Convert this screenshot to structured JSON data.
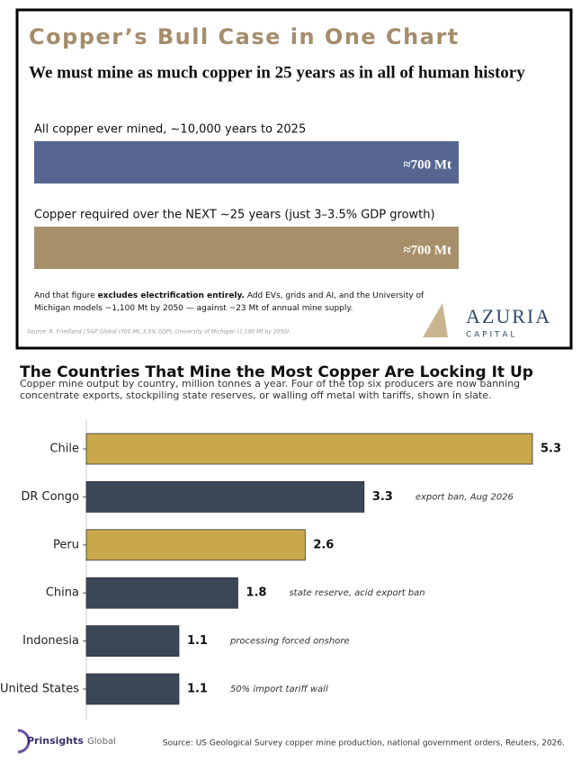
{
  "chart_data": [
    {
      "type": "bar",
      "orientation": "horizontal",
      "title": "Copper’s Bull Case in One Chart",
      "subtitle": "We must mine as much copper in 25 years as in all of human history",
      "categories": [
        "All copper ever mined, ~10,000 years to 2025",
        "Copper required over the NEXT ~25 years (just 3–3.5% GDP growth)"
      ],
      "values": [
        700,
        700
      ],
      "value_labels": [
        "≈700 Mt",
        "≈700 Mt"
      ],
      "colors": [
        "#566691",
        "#a88f6b"
      ],
      "note_lines": [
        [
          "And that figure ",
          "excludes electrification entirely.",
          "  Add EVs, grids and AI, and the University of"
        ],
        [
          "Michigan models ~1,100 Mt by 2050 — against ~23 Mt of annual mine supply."
        ]
      ],
      "source": "Source: R. Friedland / S&P Global (700 Mt, 3.5% GDP); University of Michigan (1,100 Mt by 2050).",
      "logo": {
        "name": "AZURIA",
        "tagline": "C A P I T A L"
      }
    },
    {
      "type": "bar",
      "orientation": "horizontal",
      "title": "The Countries That Mine the Most Copper Are Locking It Up",
      "subtitle": [
        "Copper mine output by country, million tonnes a year. Four of the top six producers are now banning",
        "concentrate exports, stockpiling state reserves, or walling off metal with tariffs, shown in slate."
      ],
      "categories": [
        "Chile",
        "DR Congo",
        "Peru",
        "China",
        "Indonesia",
        "United States"
      ],
      "values": [
        5.3,
        3.3,
        2.6,
        1.8,
        1.1,
        1.1
      ],
      "colors": [
        "#c9a84c",
        "#3a4757",
        "#c9a84c",
        "#3a4757",
        "#3a4757",
        "#3a4757"
      ],
      "annotations": [
        null,
        "export ban, Aug 2026",
        null,
        "state reserve, acid export ban",
        "processing forced onshore",
        "50% import tariff wall"
      ]
    }
  ],
  "footer": {
    "brand": "Prinsights",
    "brand_suffix": "Global",
    "source": "Source: US Geological Survey copper mine production, national government orders, Reuters, 2026."
  }
}
